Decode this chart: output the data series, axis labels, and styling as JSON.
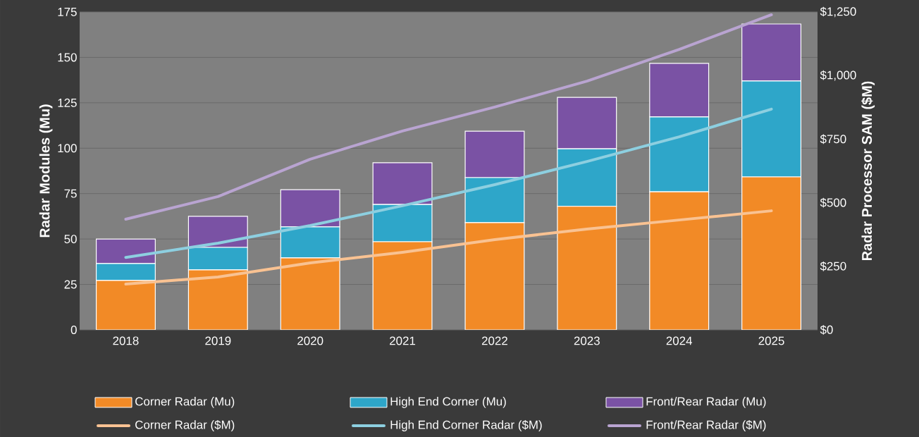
{
  "chart_data": {
    "type": "bar",
    "stacked": true,
    "ylabel": "Radar Modules (Mu)",
    "y2label": "Radar Processor SAM ($M)",
    "categories": [
      "2018",
      "2019",
      "2020",
      "2021",
      "2022",
      "2023",
      "2024",
      "2025"
    ],
    "ylim": [
      0,
      175
    ],
    "yticks": [
      0,
      25,
      50,
      75,
      100,
      125,
      150,
      175
    ],
    "y2lim": [
      0,
      1250
    ],
    "y2ticks": [
      {
        "value": 0,
        "label": "$0"
      },
      {
        "value": 250,
        "label": "$250"
      },
      {
        "value": 500,
        "label": "$500"
      },
      {
        "value": 750,
        "label": "$750"
      },
      {
        "value": 1000,
        "label": "$1,000"
      },
      {
        "value": 1250,
        "label": "$1,250"
      }
    ],
    "grid": "y",
    "legend": "bottom",
    "series": [
      {
        "name": "Corner Radar (Mu)",
        "type": "bar",
        "color": "#f28a26",
        "values": [
          27.2,
          33,
          39.6,
          48.5,
          59,
          68,
          76,
          84.2
        ]
      },
      {
        "name": "High End Corner (Mu)",
        "type": "bar",
        "color": "#2ea6c9",
        "values": [
          9.3,
          12.4,
          17.1,
          20.5,
          24.8,
          31.7,
          41.2,
          52.8
        ]
      },
      {
        "name": "Front/Rear Radar (Mu)",
        "type": "bar",
        "color": "#7a52a4",
        "values": [
          13.5,
          17.1,
          20.5,
          23,
          25.6,
          28.3,
          29.5,
          31.4
        ]
      },
      {
        "name": "Corner Radar ($M)",
        "type": "line",
        "axis": "y2",
        "color": "#f9c292",
        "values": [
          180,
          208,
          263,
          305,
          355,
          396,
          432,
          468
        ]
      },
      {
        "name": "High End Corner Radar ($M)",
        "type": "line",
        "axis": "y2",
        "color": "#8dcfe0",
        "values": [
          285,
          341,
          410,
          488,
          571,
          662,
          759,
          868
        ]
      },
      {
        "name": "Front/Rear Radar ($M)",
        "type": "line",
        "axis": "y2",
        "color": "#b9a4d1",
        "values": [
          435,
          524,
          671,
          782,
          876,
          978,
          1103,
          1239
        ]
      }
    ]
  }
}
